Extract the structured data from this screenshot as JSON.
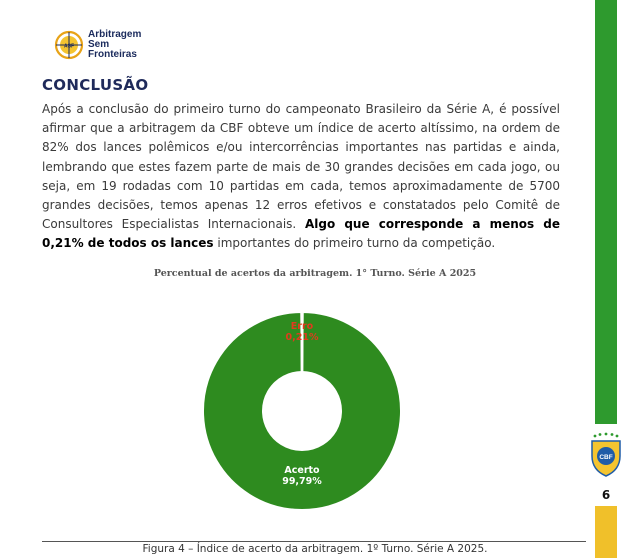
{
  "logo": {
    "line1": "Arbitragem",
    "line2": "Sem",
    "line3": "Fronteiras",
    "seal": "ASF"
  },
  "heading": "CONCLUSÃO",
  "body": {
    "p1": "Após a conclusão do primeiro turno do campeonato Brasileiro da Série A, é possível afirmar que a arbitragem da CBF obteve um índice de acerto altíssimo,  na ordem de 82% dos lances polêmicos e/ou intercorrências importantes nas partidas e ainda, lembrando que estes fazem parte de mais de 30 grandes decisões em cada jogo, ou seja, em 19 rodadas com 10 partidas em cada, temos aproximadamente de 5700 grandes decisões, temos apenas 12 erros efetivos e constatados pelo Comitê de Consultores Especialistas Internacionais. ",
    "bold": "Algo que corresponde a menos de 0,21% de todos os lances",
    "p2": " importantes do primeiro turno da competição."
  },
  "chart_data": {
    "type": "pie",
    "title": "Percentual de acertos da arbitragem. 1° Turno. Série A 2025",
    "slices": [
      {
        "label": "Acerto",
        "value": 99.79,
        "value_label": "99,79%",
        "color": "#2e8b1f"
      },
      {
        "label": "Erro",
        "value": 0.21,
        "value_label": "0,21%",
        "color": "#e03b1e"
      }
    ],
    "donut": true
  },
  "caption": "Figura 4 – Índice de acerto da arbitragem. 1º Turno. Série A 2025.",
  "sidebar": {
    "badge": "CBF",
    "page_number": "6"
  }
}
